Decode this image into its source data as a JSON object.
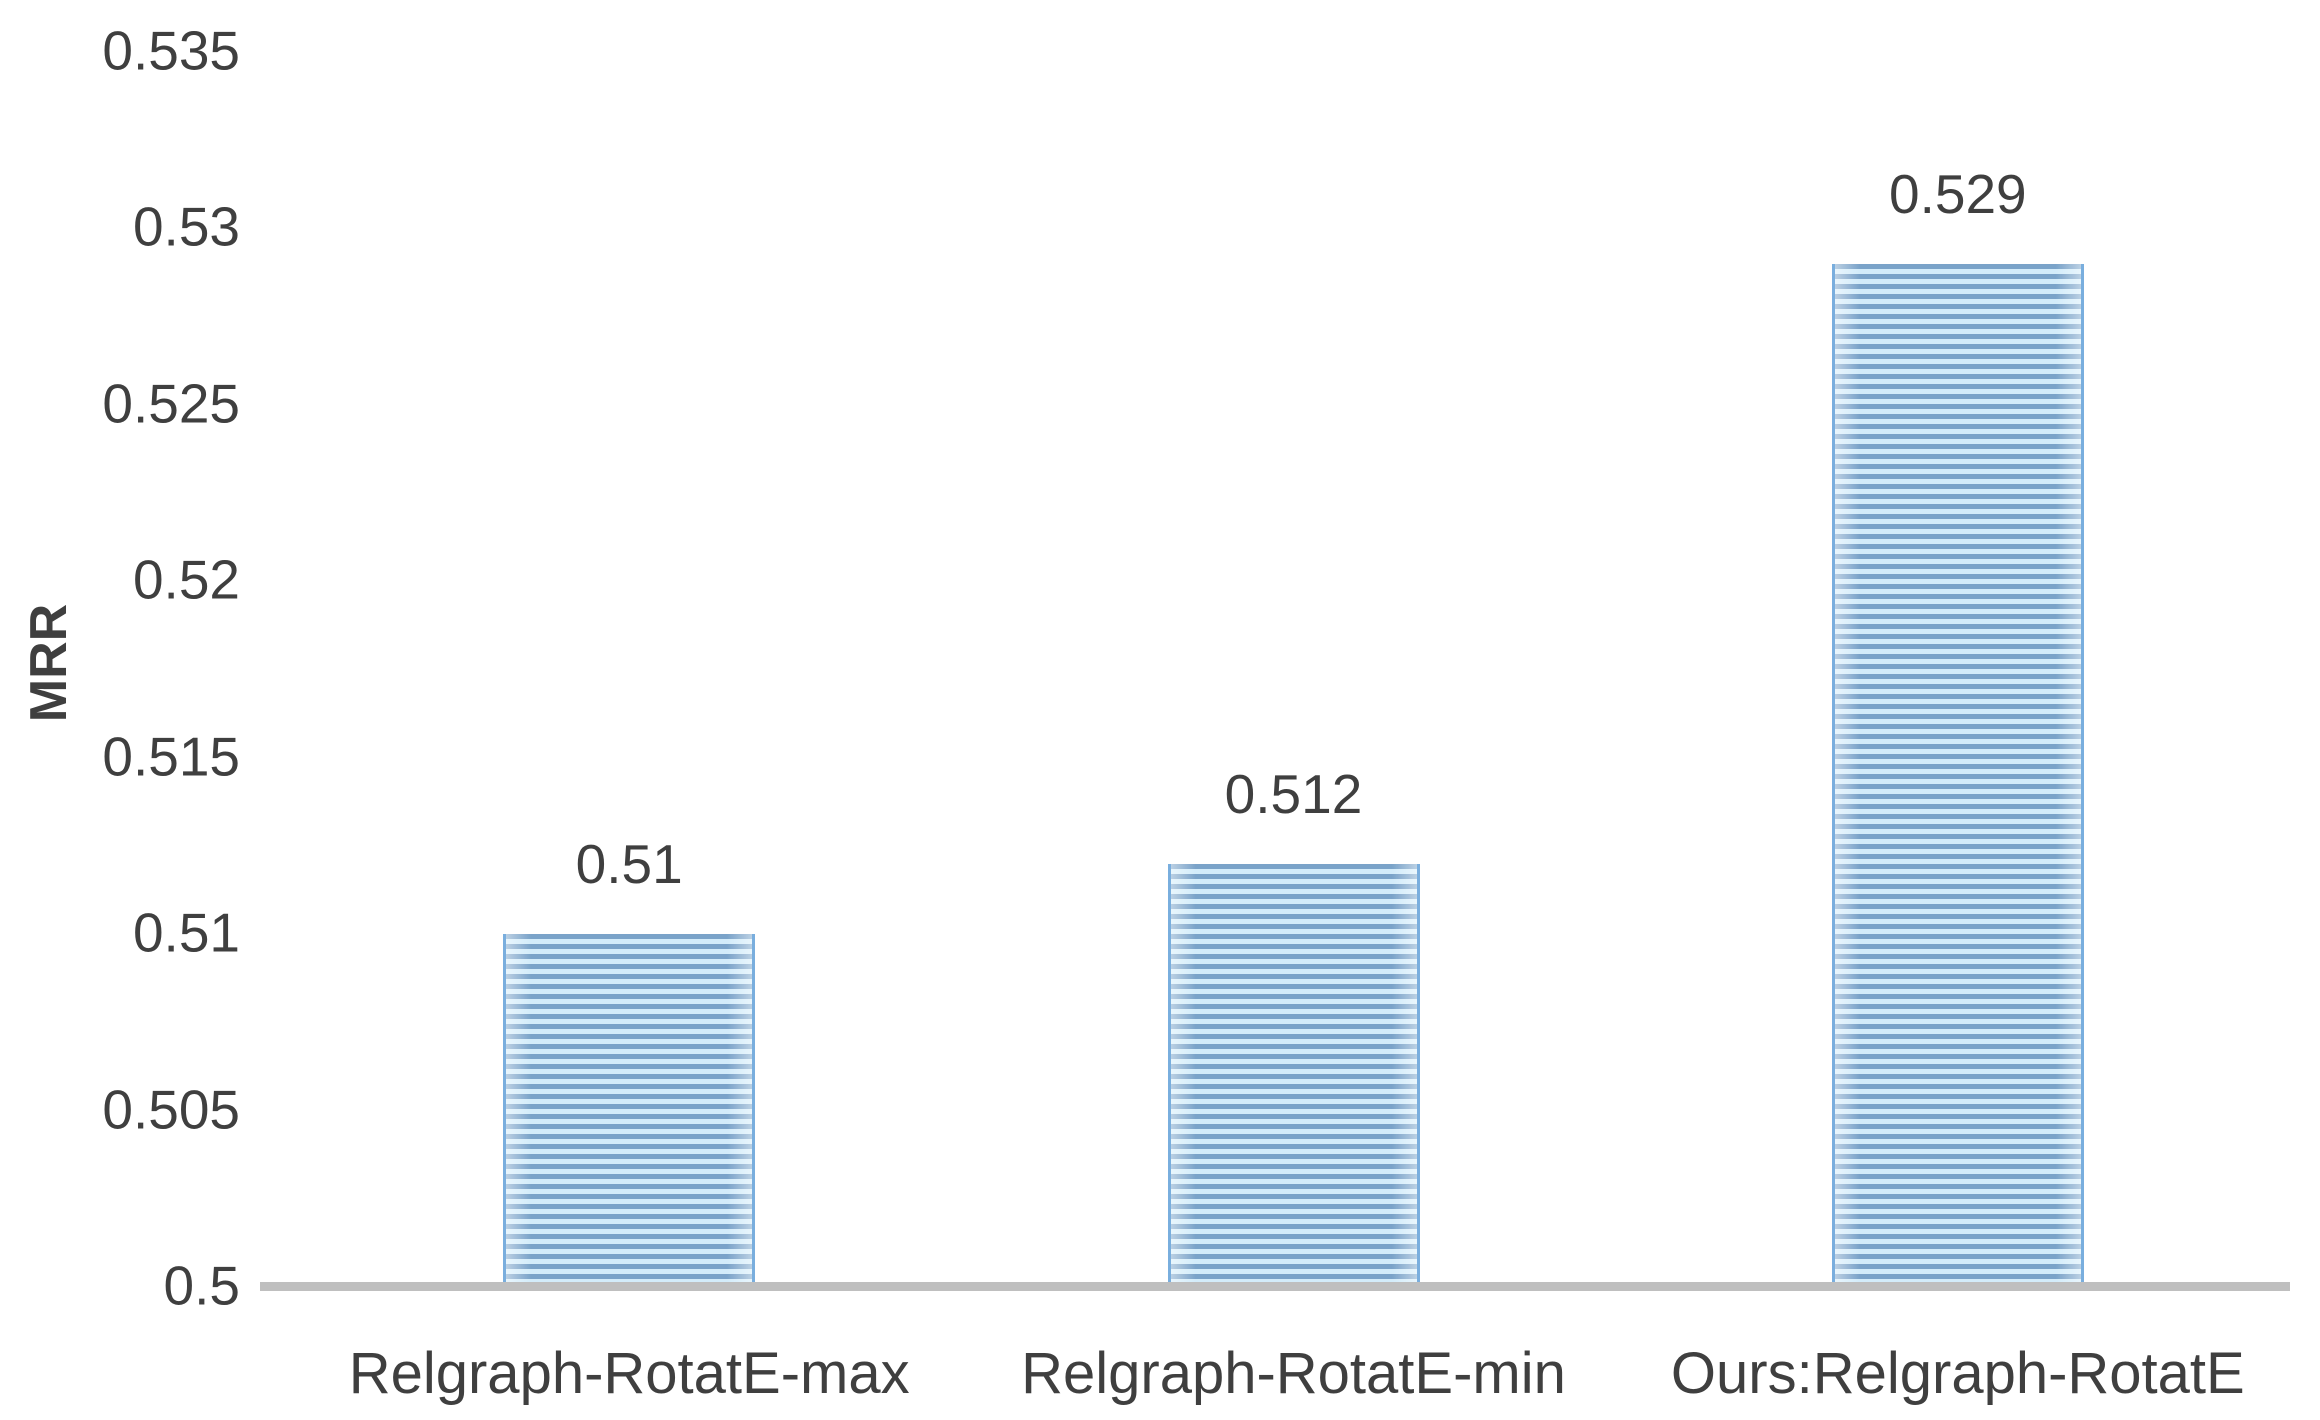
{
  "chart_data": {
    "type": "bar",
    "title": "",
    "ylabel": "MRR",
    "xlabel": "",
    "categories": [
      "Relgraph-RotatE-max",
      "Relgraph-RotatE-min",
      "Ours:Relgraph-RotatE"
    ],
    "values": [
      0.51,
      0.512,
      0.529
    ],
    "value_labels": [
      "0.51",
      "0.512",
      "0.529"
    ],
    "ylim": [
      0.5,
      0.535
    ],
    "ytick_step": 0.005,
    "ytick_labels": [
      "0.5",
      "0.505",
      "0.51",
      "0.515",
      "0.52",
      "0.525",
      "0.53",
      "0.535"
    ],
    "grid": "off",
    "legend": "none",
    "colors": {
      "stripe_dark": "#7aa3c9",
      "stripe_light": "#d3ecfa",
      "bar_edge": "#79aede",
      "axis_line": "#bfbfbf",
      "text": "#3f3f3f"
    }
  }
}
